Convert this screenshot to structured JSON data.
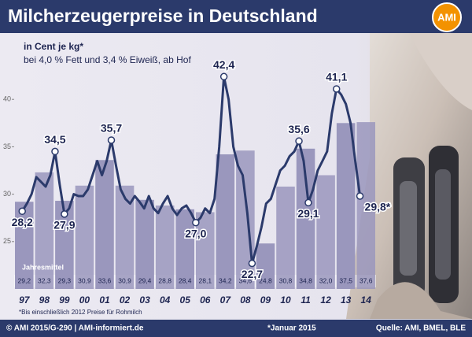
{
  "chart_data": {
    "type": "combo",
    "title": "Milcherzeugerpreise in Deutschland",
    "logo": "AMI",
    "unit_label": "in Cent je kg*",
    "subtitle": "bei 4,0 % Fett und 3,4 % Eiweiß, ab Hof",
    "categories": [
      "97",
      "98",
      "99",
      "00",
      "01",
      "02",
      "03",
      "04",
      "05",
      "06",
      "07",
      "08",
      "09",
      "10",
      "11",
      "12",
      "13",
      "14"
    ],
    "bars": {
      "name": "Jahresmittel",
      "color": "#9a97bd",
      "values": [
        29.2,
        32.3,
        29.3,
        30.9,
        33.6,
        30.9,
        29.4,
        28.8,
        28.4,
        28.1,
        34.2,
        34.6,
        24.8,
        30.8,
        34.8,
        32.0,
        37.5,
        37.6
      ],
      "value_labels": [
        "29,2",
        "32,3",
        "29,3",
        "30,9",
        "33,6",
        "30,9",
        "29,4",
        "28,8",
        "28,4",
        "28,1",
        "34,2",
        "34,6",
        "24,8",
        "30,8",
        "34,8",
        "32,0",
        "37,5",
        "37,6"
      ]
    },
    "line": {
      "color": "#2b3a6b",
      "values": [
        28.2,
        29.0,
        30.0,
        31.8,
        31.3,
        30.8,
        32.0,
        34.5,
        31.0,
        27.9,
        28.5,
        30.0,
        29.8,
        29.8,
        30.5,
        32.0,
        33.5,
        32.0,
        33.5,
        35.7,
        33.0,
        30.5,
        29.5,
        29.0,
        29.8,
        29.2,
        28.5,
        29.8,
        28.5,
        28.0,
        29.0,
        29.8,
        28.5,
        27.8,
        28.5,
        28.8,
        28.0,
        27.0,
        27.5,
        28.5,
        28.0,
        29.5,
        35.0,
        42.4,
        40.0,
        35.0,
        33.0,
        32.0,
        28.0,
        22.7,
        24.5,
        26.5,
        29.0,
        29.5,
        31.0,
        32.5,
        33.0,
        34.0,
        34.5,
        35.6,
        33.5,
        29.1,
        30.5,
        32.5,
        33.5,
        34.5,
        38.5,
        41.1,
        40.5,
        39.5,
        37.5,
        33.5,
        29.8
      ],
      "value_labels": [
        "28,2",
        null,
        null,
        null,
        null,
        null,
        null,
        "34,5",
        null,
        "27,9",
        null,
        null,
        null,
        null,
        null,
        null,
        null,
        null,
        null,
        "35,7",
        null,
        null,
        null,
        null,
        null,
        null,
        null,
        null,
        null,
        null,
        null,
        null,
        null,
        null,
        null,
        null,
        null,
        "27,0",
        null,
        null,
        null,
        null,
        null,
        "42,4",
        null,
        null,
        null,
        null,
        null,
        "22,7",
        null,
        null,
        null,
        null,
        null,
        null,
        null,
        null,
        null,
        "35,6",
        null,
        "29,1",
        null,
        null,
        null,
        null,
        null,
        "41,1",
        null,
        null,
        null,
        null,
        "29,8*"
      ]
    },
    "ylim": [
      20,
      45
    ],
    "yticks": [
      25,
      30,
      35,
      40
    ],
    "grid": false,
    "footnote": "*Bis einschließlich 2012 Preise für Rohmilch",
    "copyright": "© AMI 2015/G-290 | AMI-informiert.de",
    "date_note": "*Januar 2015",
    "source": "Quelle: AMI, BMEL, BLE"
  }
}
